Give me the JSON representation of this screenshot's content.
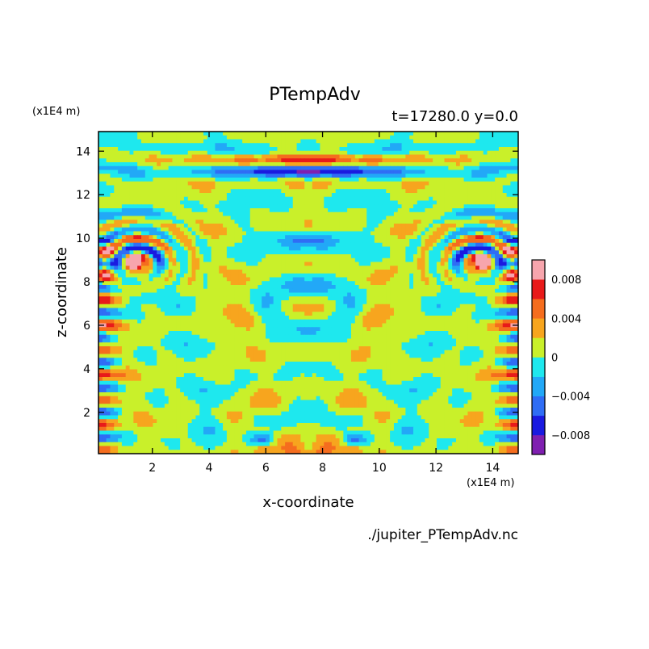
{
  "chart_data": {
    "type": "heatmap",
    "title": "PTempAdv",
    "subtitle": "t=17280.0 y=0.0",
    "xlabel": "x-coordinate",
    "ylabel": "z-coordinate",
    "x_unit": "(x1E4 m)",
    "y_unit": "(x1E4 m)",
    "source": "./jupiter_PTempAdv.nc",
    "xlim": [
      0.1,
      14.9
    ],
    "ylim": [
      0.1,
      14.9
    ],
    "x_ticks": [
      2,
      4,
      6,
      8,
      10,
      12,
      14
    ],
    "y_ticks": [
      2,
      4,
      6,
      8,
      10,
      12,
      14
    ],
    "colorbar": {
      "range": [
        -0.01,
        0.01
      ],
      "levels": [
        -0.01,
        -0.008,
        -0.006,
        -0.004,
        -0.002,
        0,
        0.002,
        0.004,
        0.006,
        0.008,
        0.01
      ],
      "colors": [
        "#7f1fb0",
        "#1a1ae0",
        "#2f6df5",
        "#22a8f7",
        "#1ee8ee",
        "#c9f02a",
        "#f7a51e",
        "#f56d1e",
        "#e81a1a",
        "#f7a5ad"
      ],
      "tick_labels": [
        {
          "value": 0.008,
          "label": "0.008"
        },
        {
          "value": 0.004,
          "label": "0.004"
        },
        {
          "value": 0,
          "label": "0"
        },
        {
          "value": -0.004,
          "label": "−0.004"
        },
        {
          "value": -0.008,
          "label": "−0.008"
        }
      ]
    }
  }
}
